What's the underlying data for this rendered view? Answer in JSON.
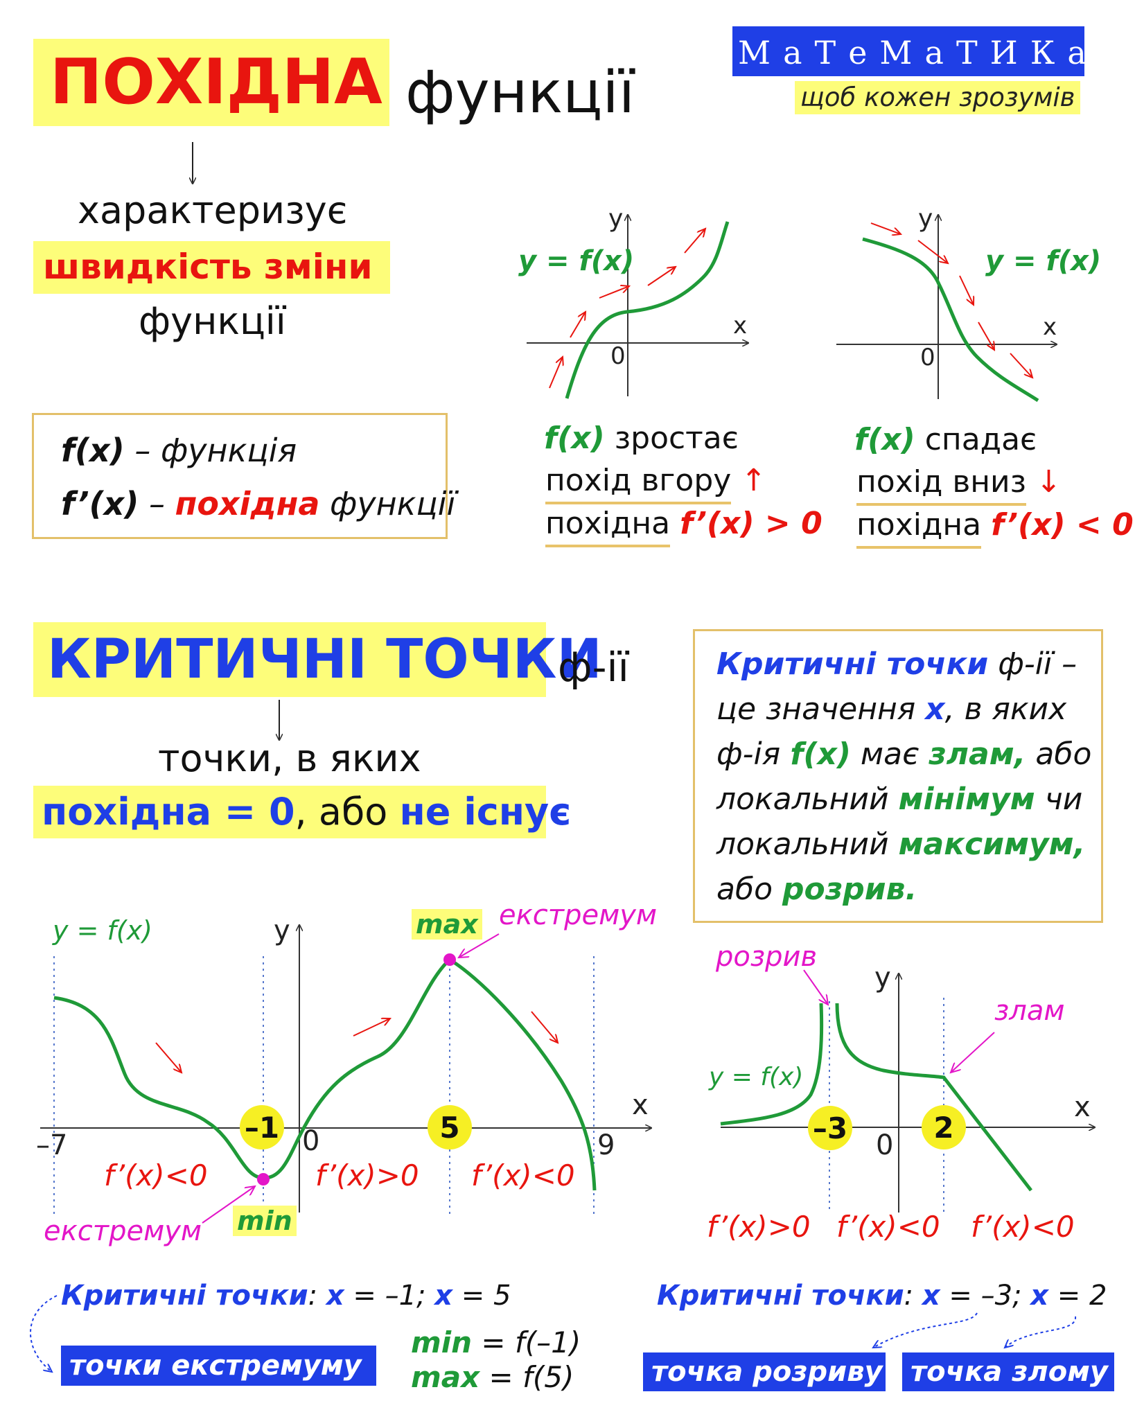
{
  "title": {
    "main": "ПОХІДНА",
    "rest": "функції"
  },
  "brand": {
    "name": "МаТеМаТИКа",
    "tagline": "щоб кожен зрозумів"
  },
  "intro": {
    "line1": "характеризує",
    "line2": "швидкість зміни",
    "line3": "функції"
  },
  "defs_box": {
    "f": "f(x)",
    "f_text": " – функція",
    "fp": "f’(x)",
    "fp_dash": " – ",
    "fp_word": "похідна",
    "fp_rest": " функції"
  },
  "graph_inc": {
    "label": "y = f(x)",
    "y": "y",
    "x": "x",
    "o": "0",
    "t1_f": "f(x)",
    "t1_rest": " зростає",
    "t2": "похід вгору",
    "t2_arrow": "↑",
    "t3": "похідна",
    "t3_cond": "f’(x) > 0"
  },
  "graph_dec": {
    "label": "y = f(x)",
    "y": "y",
    "x": "x",
    "o": "0",
    "t1_f": "f(x)",
    "t1_rest": " спадає",
    "t2": "похід вниз",
    "t2_arrow": "↓",
    "t3": "похідна",
    "t3_cond": "f’(x) < 0"
  },
  "critical": {
    "title": "КРИТИЧНІ ТОЧКИ",
    "rest": "ф-ії",
    "line1": "точки, в яких",
    "line2a": "похідна = 0",
    "line2b": ", або ",
    "line2c": "не існує"
  },
  "crit_box": {
    "p1": "Критичні точки",
    "p2": " ф-ії –",
    "p3": "це значення ",
    "p4": "x",
    "p5": ", в яких",
    "p6": "ф-ія ",
    "p7": "f(x)",
    "p8": " має ",
    "p9": "злам,",
    "p10": " або",
    "p11": "локальний ",
    "p12": "мінімум",
    "p13": " чи",
    "p14": "локальний ",
    "p15": "максимум,",
    "p16": "або ",
    "p17": "розрив."
  },
  "big_graph": {
    "label": "y = f(x)",
    "y": "y",
    "x": "x",
    "o": "0",
    "xm7": "–7",
    "x9": "9",
    "pt1": "–1",
    "pt2": "5",
    "max": "max",
    "min": "min",
    "ext1": "екстремум",
    "ext2": "екстремум",
    "d1": "f’(x)<0",
    "d2": "f’(x)>0",
    "d3": "f’(x)<0"
  },
  "small_graph": {
    "label": "y = f(x)",
    "y": "y",
    "x": "x",
    "o": "0",
    "pt1": "–3",
    "pt2": "2",
    "rozryv": "розрив",
    "zlam": "злам",
    "d1": "f’(x)>0",
    "d2": "f’(x)<0",
    "d3": "f’(x)<0"
  },
  "bottom_left": {
    "lbl": "Критичні точки",
    "colon": ":",
    "x1": "x",
    "v1": " = –1; ",
    "x2": "x",
    "v2": " = 5",
    "badge": "точки екстремуму",
    "min_k": "min",
    "min_v": " = f(–1)",
    "max_k": "max",
    "max_v": " = f(5)"
  },
  "bottom_right": {
    "lbl": "Критичні точки",
    "colon": ":",
    "x1": "x",
    "v1": " = –3; ",
    "x2": "x",
    "v2": " = 2",
    "badge1": "точка розриву",
    "badge2": "точка злому"
  },
  "colors": {
    "red": "#e8150f",
    "blue": "#1f3fe6",
    "green": "#1f9a38",
    "magenta": "#e316c8",
    "yellow": "#fdfd7a"
  }
}
